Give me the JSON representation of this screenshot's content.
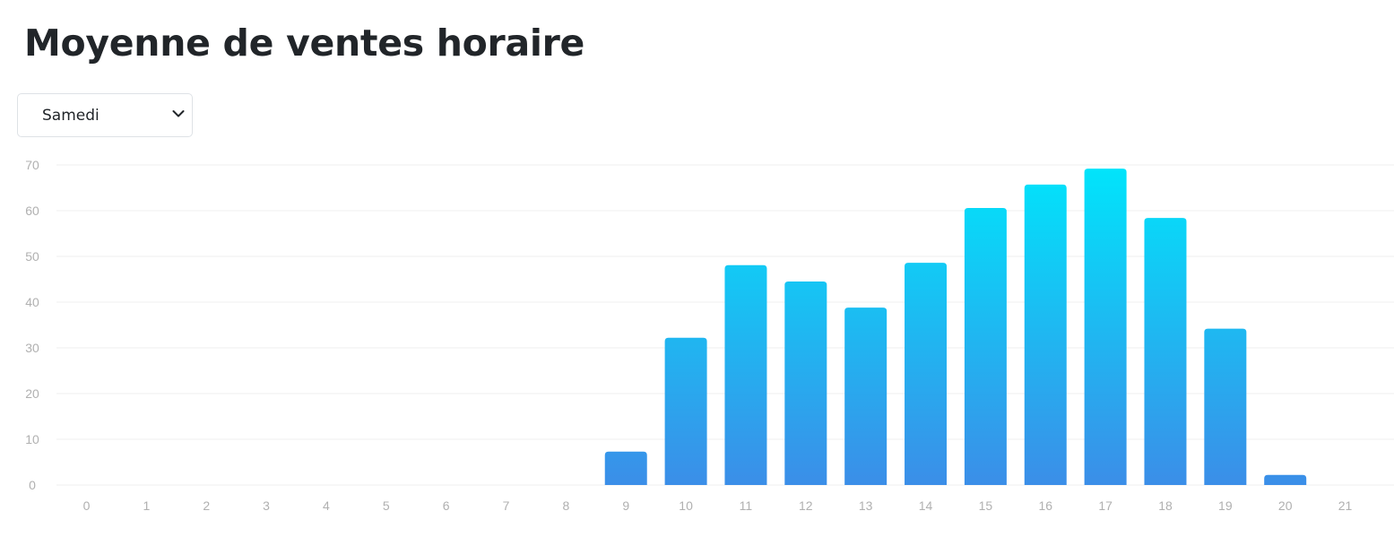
{
  "title": "Moyenne de ventes horaire",
  "day_select": {
    "selected": "Samedi",
    "icon": "chevron-down-icon"
  },
  "colors": {
    "bar_top": "#00e5fb",
    "bar_bottom": "#3b8ee8",
    "grid": "#efefef",
    "tick_label": "#b0b0b0",
    "title": "#212529"
  },
  "chart_data": {
    "type": "bar",
    "categories": [
      "0",
      "1",
      "2",
      "3",
      "4",
      "5",
      "6",
      "7",
      "8",
      "9",
      "10",
      "11",
      "12",
      "13",
      "14",
      "15",
      "16",
      "17",
      "18",
      "19",
      "20",
      "21"
    ],
    "values": [
      0,
      0,
      0,
      0,
      0,
      0,
      0,
      0,
      0,
      7.3,
      32.2,
      48.1,
      44.5,
      38.8,
      48.6,
      60.6,
      65.7,
      69.2,
      58.4,
      34.2,
      2.2,
      0
    ],
    "title": "",
    "xlabel": "",
    "ylabel": "",
    "ylim": [
      0,
      70
    ],
    "yticks": [
      "0",
      "10",
      "20",
      "30",
      "40",
      "50",
      "60",
      "70"
    ],
    "grid": true,
    "legend": "none"
  }
}
